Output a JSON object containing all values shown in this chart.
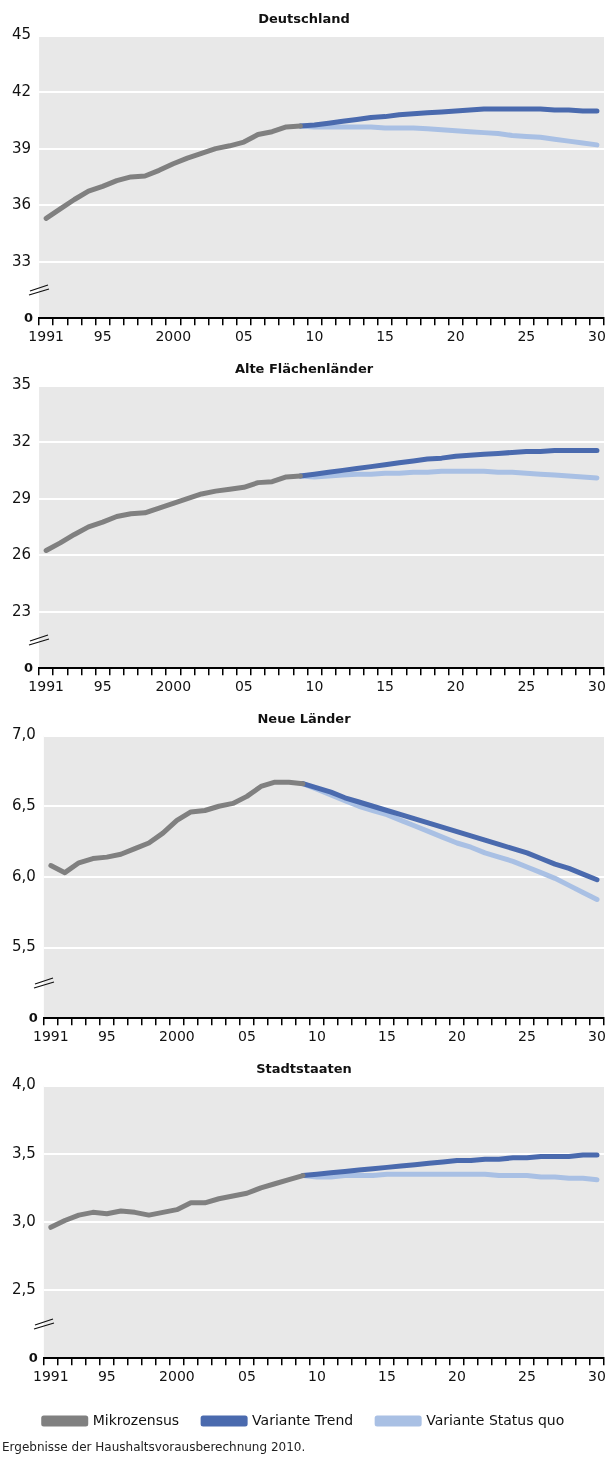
{
  "chart_data": [
    {
      "type": "line",
      "title": "Deutschland",
      "categories": [
        "1991",
        null,
        null,
        null,
        "95",
        null,
        null,
        null,
        null,
        "2000",
        null,
        null,
        null,
        null,
        "05",
        null,
        null,
        null,
        null,
        "10",
        null,
        null,
        null,
        null,
        "15",
        null,
        null,
        null,
        null,
        "20",
        null,
        null,
        null,
        null,
        "25",
        null,
        null,
        null,
        null,
        "30"
      ],
      "ylim": [
        30,
        45
      ],
      "yticks": [
        {
          "value": 30,
          "label": null
        },
        33,
        36,
        39,
        42,
        45
      ],
      "grid": "y",
      "annotations": [
        "0"
      ],
      "series": [
        {
          "color": "#808080",
          "values": [
            35.3,
            35.8,
            36.3,
            36.75,
            37.0,
            37.3,
            37.5,
            37.55,
            37.85,
            38.2,
            38.5,
            38.75,
            39.0,
            39.15,
            39.35,
            39.75,
            39.9,
            40.15,
            40.2,
            null,
            null,
            null,
            null,
            null,
            null,
            null,
            null,
            null,
            null,
            null,
            null,
            null,
            null,
            null,
            null,
            null,
            null,
            null,
            null,
            null
          ]
        },
        {
          "color": "#4a6aae",
          "values": [
            null,
            null,
            null,
            null,
            null,
            null,
            null,
            null,
            null,
            null,
            null,
            null,
            null,
            null,
            null,
            null,
            null,
            null,
            40.2,
            40.25,
            40.35,
            40.45,
            40.55,
            40.65,
            40.7,
            40.8,
            40.85,
            40.9,
            40.95,
            41.0,
            41.05,
            41.1,
            41.1,
            41.1,
            41.1,
            41.1,
            41.05,
            41.05,
            41.0,
            41.0
          ]
        },
        {
          "color": "#a9c0e4",
          "values": [
            null,
            null,
            null,
            null,
            null,
            null,
            null,
            null,
            null,
            null,
            null,
            null,
            null,
            null,
            null,
            null,
            null,
            null,
            40.2,
            40.15,
            40.15,
            40.15,
            40.15,
            40.15,
            40.1,
            40.1,
            40.1,
            40.05,
            40.0,
            39.95,
            39.9,
            39.85,
            39.8,
            39.7,
            39.65,
            39.6,
            39.5,
            39.4,
            39.3,
            39.2
          ]
        }
      ]
    },
    {
      "type": "line",
      "title": "Alte Flächenländer",
      "categories": [
        "1991",
        null,
        null,
        null,
        "95",
        null,
        null,
        null,
        null,
        "2000",
        null,
        null,
        null,
        null,
        "05",
        null,
        null,
        null,
        null,
        "10",
        null,
        null,
        null,
        null,
        "15",
        null,
        null,
        null,
        null,
        "20",
        null,
        null,
        null,
        null,
        "25",
        null,
        null,
        null,
        null,
        "30"
      ],
      "ylim": [
        20,
        35
      ],
      "yticks": [
        {
          "value": 20,
          "label": null
        },
        23,
        26,
        29,
        32,
        35
      ],
      "grid": "y",
      "annotations": [
        "0"
      ],
      "series": [
        {
          "color": "#808080",
          "values": [
            26.25,
            26.65,
            27.1,
            27.5,
            27.75,
            28.05,
            28.2,
            28.25,
            28.5,
            28.75,
            29.0,
            29.25,
            29.4,
            29.5,
            29.6,
            29.85,
            29.9,
            30.15,
            30.2,
            null,
            null,
            null,
            null,
            null,
            null,
            null,
            null,
            null,
            null,
            null,
            null,
            null,
            null,
            null,
            null,
            null,
            null,
            null,
            null,
            null
          ]
        },
        {
          "color": "#4a6aae",
          "values": [
            null,
            null,
            null,
            null,
            null,
            null,
            null,
            null,
            null,
            null,
            null,
            null,
            null,
            null,
            null,
            null,
            null,
            null,
            30.2,
            30.3,
            30.4,
            30.5,
            30.6,
            30.7,
            30.8,
            30.9,
            31.0,
            31.1,
            31.15,
            31.25,
            31.3,
            31.35,
            31.4,
            31.45,
            31.5,
            31.5,
            31.55,
            31.55,
            31.55,
            31.55
          ]
        },
        {
          "color": "#a9c0e4",
          "values": [
            null,
            null,
            null,
            null,
            null,
            null,
            null,
            null,
            null,
            null,
            null,
            null,
            null,
            null,
            null,
            null,
            null,
            null,
            30.2,
            30.15,
            30.2,
            30.25,
            30.3,
            30.3,
            30.35,
            30.35,
            30.4,
            30.4,
            30.45,
            30.45,
            30.45,
            30.45,
            30.4,
            30.4,
            30.35,
            30.3,
            30.25,
            30.2,
            30.15,
            30.1
          ]
        }
      ]
    },
    {
      "type": "line",
      "title": "Neue Länder",
      "categories": [
        "1991",
        null,
        null,
        null,
        "95",
        null,
        null,
        null,
        null,
        "2000",
        null,
        null,
        null,
        null,
        "05",
        null,
        null,
        null,
        null,
        "10",
        null,
        null,
        null,
        null,
        "15",
        null,
        null,
        null,
        null,
        "20",
        null,
        null,
        null,
        null,
        "25",
        null,
        null,
        null,
        null,
        "30"
      ],
      "ylim": [
        5.0,
        7.0
      ],
      "yticks": [
        {
          "value": 5.0,
          "label": null
        },
        {
          "value": 5.5,
          "label": "5,5"
        },
        {
          "value": 6.0,
          "label": "6,0"
        },
        {
          "value": 6.5,
          "label": "6,5"
        },
        {
          "value": 7.0,
          "label": "7,0"
        }
      ],
      "grid": "y",
      "annotations": [
        "0"
      ],
      "series": [
        {
          "color": "#808080",
          "values": [
            6.08,
            6.03,
            6.1,
            6.13,
            6.14,
            6.16,
            6.2,
            6.24,
            6.31,
            6.4,
            6.46,
            6.47,
            6.5,
            6.52,
            6.57,
            6.64,
            6.67,
            6.67,
            6.66,
            null,
            null,
            null,
            null,
            null,
            null,
            null,
            null,
            null,
            null,
            null,
            null,
            null,
            null,
            null,
            null,
            null,
            null,
            null,
            null,
            null
          ]
        },
        {
          "color": "#4a6aae",
          "values": [
            null,
            null,
            null,
            null,
            null,
            null,
            null,
            null,
            null,
            null,
            null,
            null,
            null,
            null,
            null,
            null,
            null,
            null,
            6.66,
            6.63,
            6.6,
            6.56,
            6.53,
            6.5,
            6.47,
            6.44,
            6.41,
            6.38,
            6.35,
            6.32,
            6.29,
            6.26,
            6.23,
            6.2,
            6.17,
            6.13,
            6.09,
            6.06,
            6.02,
            5.98
          ]
        },
        {
          "color": "#a9c0e4",
          "values": [
            null,
            null,
            null,
            null,
            null,
            null,
            null,
            null,
            null,
            null,
            null,
            null,
            null,
            null,
            null,
            null,
            null,
            null,
            6.66,
            6.62,
            6.58,
            6.54,
            6.5,
            6.47,
            6.44,
            6.4,
            6.36,
            6.32,
            6.28,
            6.24,
            6.21,
            6.17,
            6.14,
            6.11,
            6.07,
            6.03,
            5.99,
            5.94,
            5.89,
            5.84
          ]
        }
      ]
    },
    {
      "type": "line",
      "title": "Stadtstaaten",
      "categories": [
        "1991",
        null,
        null,
        null,
        "95",
        null,
        null,
        null,
        null,
        "2000",
        null,
        null,
        null,
        null,
        "05",
        null,
        null,
        null,
        null,
        "10",
        null,
        null,
        null,
        null,
        "15",
        null,
        null,
        null,
        null,
        "20",
        null,
        null,
        null,
        null,
        "25",
        null,
        null,
        null,
        null,
        "30"
      ],
      "ylim": [
        2.0,
        4.0
      ],
      "yticks": [
        {
          "value": 2.0,
          "label": null
        },
        {
          "value": 2.5,
          "label": "2,5"
        },
        {
          "value": 3.0,
          "label": "3,0"
        },
        {
          "value": 3.5,
          "label": "3,5"
        },
        {
          "value": 4.0,
          "label": "4,0"
        }
      ],
      "grid": "y",
      "legend": "bottom",
      "annotations": [
        "0",
        "Ergebnisse der Haushaltsvorausberechnung 2010."
      ],
      "series": [
        {
          "name": "Mikrozensus",
          "color": "#808080",
          "values": [
            2.96,
            3.01,
            3.05,
            3.07,
            3.06,
            3.08,
            3.07,
            3.05,
            3.07,
            3.09,
            3.14,
            3.14,
            3.17,
            3.19,
            3.21,
            3.25,
            3.28,
            3.31,
            3.34,
            null,
            null,
            null,
            null,
            null,
            null,
            null,
            null,
            null,
            null,
            null,
            null,
            null,
            null,
            null,
            null,
            null,
            null,
            null,
            null,
            null
          ]
        },
        {
          "name": "Variante Trend",
          "color": "#4a6aae",
          "values": [
            null,
            null,
            null,
            null,
            null,
            null,
            null,
            null,
            null,
            null,
            null,
            null,
            null,
            null,
            null,
            null,
            null,
            null,
            3.34,
            3.35,
            3.36,
            3.37,
            3.38,
            3.39,
            3.4,
            3.41,
            3.42,
            3.43,
            3.44,
            3.45,
            3.45,
            3.46,
            3.46,
            3.47,
            3.47,
            3.48,
            3.48,
            3.48,
            3.49,
            3.49
          ]
        },
        {
          "name": "Variante Status quo",
          "color": "#a9c0e4",
          "values": [
            null,
            null,
            null,
            null,
            null,
            null,
            null,
            null,
            null,
            null,
            null,
            null,
            null,
            null,
            null,
            null,
            null,
            null,
            3.34,
            3.33,
            3.33,
            3.34,
            3.34,
            3.34,
            3.35,
            3.35,
            3.35,
            3.35,
            3.35,
            3.35,
            3.35,
            3.35,
            3.34,
            3.34,
            3.34,
            3.33,
            3.33,
            3.32,
            3.32,
            3.31
          ]
        }
      ]
    }
  ]
}
